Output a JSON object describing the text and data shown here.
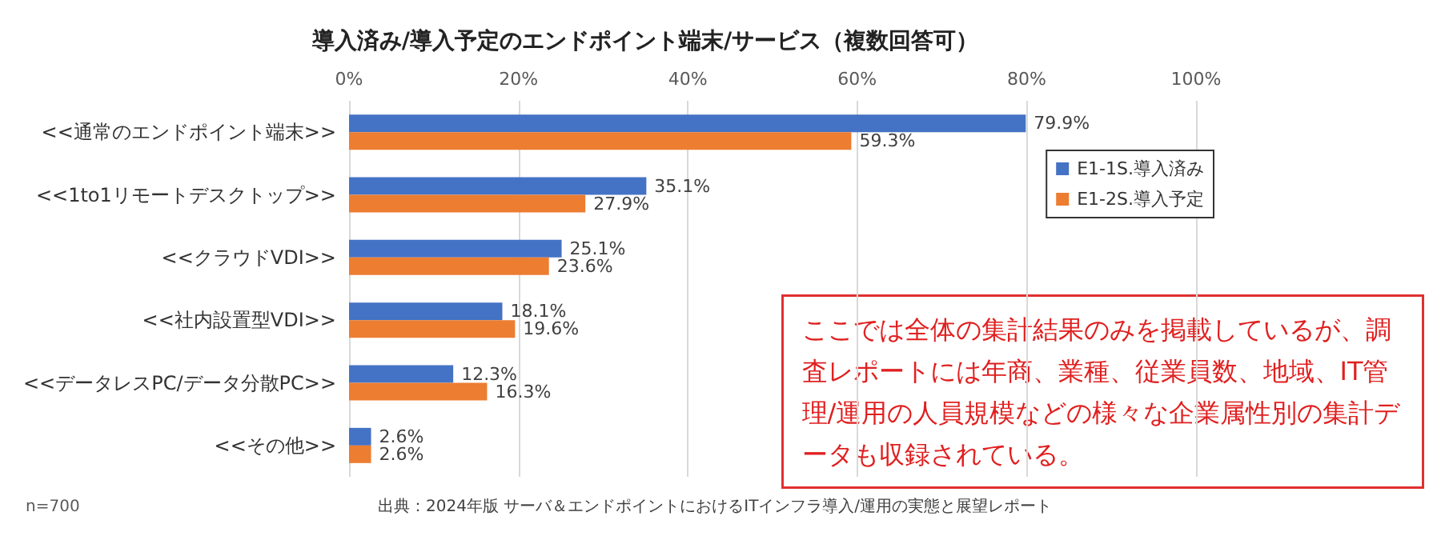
{
  "chart_data": {
    "type": "bar",
    "orientation": "horizontal",
    "title": "導入済み/導入予定のエンドポイント端末/サービス（複数回答可）",
    "categories": [
      "<<通常のエンドポイント端末>>",
      "<<1to1リモートデスクトップ>>",
      "<<クラウドVDI>>",
      "<<社内設置型VDI>>",
      "<<データレスPC/データ分散PC>>",
      "<<その他>>"
    ],
    "series": [
      {
        "name": "E1-1S.導入済み",
        "color": "#4472c4",
        "values": [
          79.9,
          35.1,
          25.1,
          18.1,
          12.3,
          2.6
        ],
        "value_labels": [
          "79.9%",
          "35.1%",
          "25.1%",
          "18.1%",
          "12.3%",
          "2.6%"
        ]
      },
      {
        "name": "E1-2S.導入予定",
        "color": "#ed7d31",
        "values": [
          59.3,
          27.9,
          23.6,
          19.6,
          16.3,
          2.6
        ],
        "value_labels": [
          "59.3%",
          "27.9%",
          "23.6%",
          "19.6%",
          "16.3%",
          "2.6%"
        ]
      }
    ],
    "xlim": [
      0,
      100
    ],
    "xticks": [
      {
        "value": 0,
        "label": "0%"
      },
      {
        "value": 20,
        "label": "20%"
      },
      {
        "value": 40,
        "label": "40%"
      },
      {
        "value": 60,
        "label": "60%"
      },
      {
        "value": 80,
        "label": "80%"
      },
      {
        "value": 100,
        "label": "100%"
      }
    ],
    "grid": "x",
    "legend": "top right",
    "annotations": [
      "n=700",
      "出典：2024年版 サーバ＆エンドポイントにおけるITインフラ導入/運用の実態と展望レポート",
      "ここでは全体の集計結果のみを掲載しているが、調査レポートには年商、業種、従業員数、地域、IT管理/運用の人員規模などの様々な企業属性別の集計データも収録されている。"
    ]
  }
}
